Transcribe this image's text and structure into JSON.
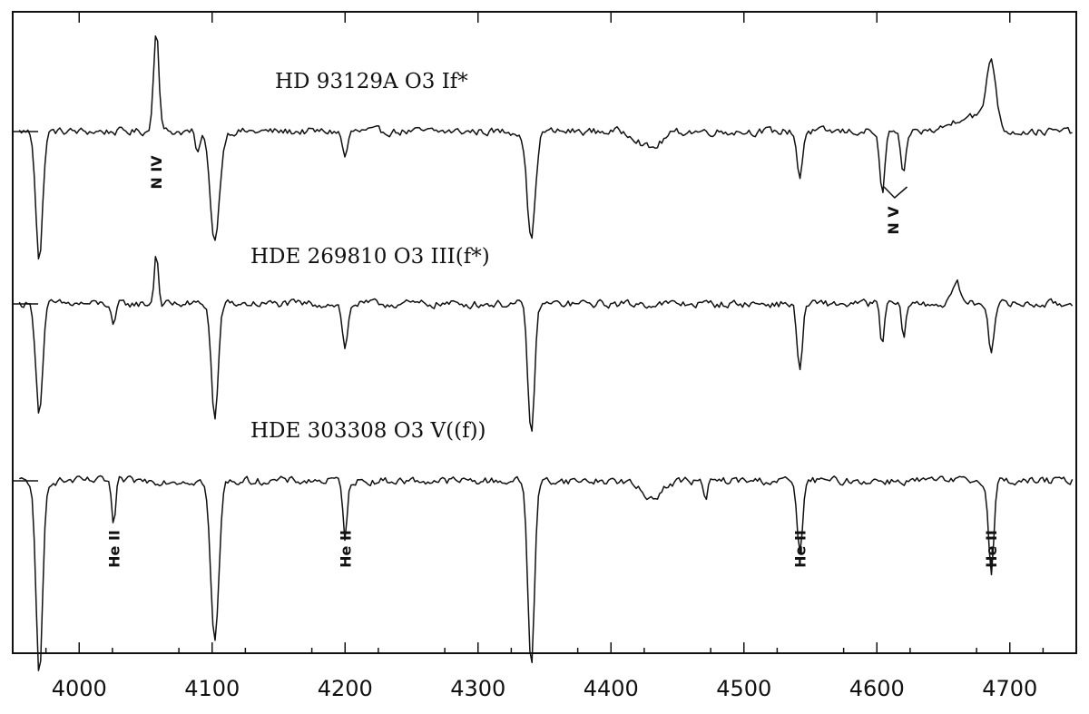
{
  "chart_data": {
    "type": "line",
    "title": "",
    "xlabel": "",
    "ylabel": "",
    "xlim": [
      3950,
      4750
    ],
    "x_ticks": [
      4000,
      4100,
      4200,
      4300,
      4400,
      4500,
      4600,
      4700
    ],
    "x_tick_labels": [
      "4000",
      "4100",
      "4200",
      "4300",
      "4400",
      "4500",
      "4600",
      "4700"
    ],
    "grid": false,
    "series": [
      {
        "name": "HD 93129A  O3 If*",
        "continuum": 1.0,
        "features": [
          {
            "x": 3970,
            "depth": -0.62,
            "width": 2.5
          },
          {
            "x": 4058,
            "depth": 0.5,
            "width": 2.0
          },
          {
            "x": 4089,
            "depth": -0.12,
            "width": 1.5
          },
          {
            "x": 4102,
            "depth": -0.52,
            "width": 3.5
          },
          {
            "x": 4200,
            "depth": -0.12,
            "width": 2.0
          },
          {
            "x": 4340,
            "depth": -0.52,
            "width": 3.0
          },
          {
            "x": 4430,
            "depth": -0.08,
            "width": 8.0
          },
          {
            "x": 4542,
            "depth": -0.22,
            "width": 2.0
          },
          {
            "x": 4604,
            "depth": -0.3,
            "width": 2.0
          },
          {
            "x": 4620,
            "depth": -0.22,
            "width": 2.0
          },
          {
            "x": 4686,
            "depth": 0.32,
            "width": 3.5
          },
          {
            "x": 4670,
            "depth": 0.08,
            "width": 12.0
          }
        ],
        "annotations": [
          {
            "text": "N IV",
            "x": 4058
          },
          {
            "text": "N V",
            "x": 4612
          }
        ]
      },
      {
        "name": "HDE 269810  O3 III(f*)",
        "continuum": 1.0,
        "features": [
          {
            "x": 3970,
            "depth": -0.52,
            "width": 2.5
          },
          {
            "x": 4026,
            "depth": -0.12,
            "width": 1.5
          },
          {
            "x": 4058,
            "depth": 0.25,
            "width": 1.5
          },
          {
            "x": 4102,
            "depth": -0.56,
            "width": 2.5
          },
          {
            "x": 4200,
            "depth": -0.22,
            "width": 2.0
          },
          {
            "x": 4340,
            "depth": -0.62,
            "width": 2.5
          },
          {
            "x": 4542,
            "depth": -0.32,
            "width": 2.0
          },
          {
            "x": 4604,
            "depth": -0.2,
            "width": 1.5
          },
          {
            "x": 4620,
            "depth": -0.16,
            "width": 1.5
          },
          {
            "x": 4686,
            "depth": -0.22,
            "width": 2.0
          },
          {
            "x": 4660,
            "depth": 0.1,
            "width": 3.0
          }
        ]
      },
      {
        "name": "HDE 303308  O3 V((f))",
        "continuum": 1.0,
        "features": [
          {
            "x": 3970,
            "depth": -0.95,
            "width": 2.5
          },
          {
            "x": 4026,
            "depth": -0.22,
            "width": 1.5
          },
          {
            "x": 4102,
            "depth": -0.78,
            "width": 3.0
          },
          {
            "x": 4200,
            "depth": -0.3,
            "width": 1.5
          },
          {
            "x": 4340,
            "depth": -0.88,
            "width": 2.5
          },
          {
            "x": 4430,
            "depth": -0.08,
            "width": 8.0
          },
          {
            "x": 4471,
            "depth": -0.1,
            "width": 1.5
          },
          {
            "x": 4542,
            "depth": -0.36,
            "width": 2.0
          },
          {
            "x": 4686,
            "depth": -0.44,
            "width": 2.0
          }
        ],
        "annotations": [
          {
            "text": "He II",
            "x": 4026
          },
          {
            "text": "He II",
            "x": 4200
          },
          {
            "text": "He II",
            "x": 4542
          },
          {
            "text": "He II",
            "x": 4686
          }
        ]
      }
    ]
  }
}
